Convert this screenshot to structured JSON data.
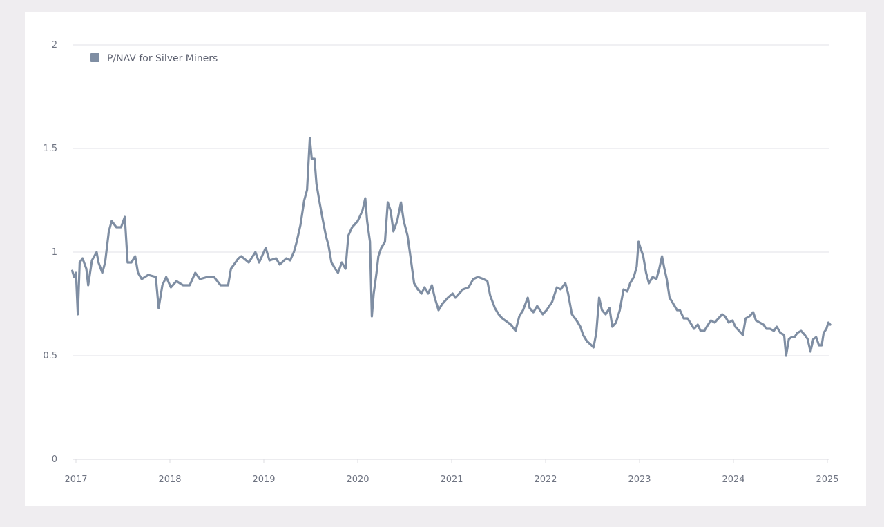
{
  "chart_data": {
    "type": "line",
    "title": "",
    "xlabel": "",
    "ylabel": "",
    "ylim": [
      0,
      2
    ],
    "xlim": [
      2016.96,
      2025.03
    ],
    "y_ticks": [
      {
        "value": 0,
        "label": "0"
      },
      {
        "value": 0.5,
        "label": "0.5"
      },
      {
        "value": 1,
        "label": "1"
      },
      {
        "value": 1.5,
        "label": "1.5"
      },
      {
        "value": 2,
        "label": "2"
      }
    ],
    "x_ticks": [
      {
        "value": 2017,
        "label": "2017"
      },
      {
        "value": 2018,
        "label": "2018"
      },
      {
        "value": 2019,
        "label": "2019"
      },
      {
        "value": 2020,
        "label": "2020"
      },
      {
        "value": 2021,
        "label": "2021"
      },
      {
        "value": 2022,
        "label": "2022"
      },
      {
        "value": 2023,
        "label": "2023"
      },
      {
        "value": 2024,
        "label": "2024"
      },
      {
        "value": 2025,
        "label": "2025"
      }
    ],
    "grid": true,
    "legend": {
      "placement": "top-left"
    },
    "series": [
      {
        "name": "P/NAV for Silver Miners",
        "color": "#7f8ea3",
        "x": [
          2016.96,
          2016.98,
          2017.0,
          2017.02,
          2017.04,
          2017.07,
          2017.11,
          2017.13,
          2017.17,
          2017.22,
          2017.24,
          2017.28,
          2017.31,
          2017.35,
          2017.38,
          2017.43,
          2017.48,
          2017.52,
          2017.55,
          2017.59,
          2017.63,
          2017.66,
          2017.7,
          2017.77,
          2017.85,
          2017.88,
          2017.92,
          2017.96,
          2018.01,
          2018.07,
          2018.14,
          2018.21,
          2018.27,
          2018.32,
          2018.4,
          2018.47,
          2018.54,
          2018.62,
          2018.65,
          2018.73,
          2018.76,
          2018.84,
          2018.91,
          2018.95,
          2019.02,
          2019.06,
          2019.13,
          2019.17,
          2019.24,
          2019.28,
          2019.32,
          2019.35,
          2019.39,
          2019.43,
          2019.46,
          2019.49,
          2019.51,
          2019.54,
          2019.56,
          2019.59,
          2019.63,
          2019.66,
          2019.69,
          2019.72,
          2019.76,
          2019.79,
          2019.83,
          2019.87,
          2019.9,
          2019.94,
          2020.0,
          2020.05,
          2020.08,
          2020.1,
          2020.13,
          2020.15,
          2020.17,
          2020.2,
          2020.22,
          2020.25,
          2020.29,
          2020.32,
          2020.35,
          2020.38,
          2020.42,
          2020.46,
          2020.49,
          2020.53,
          2020.57,
          2020.6,
          2020.64,
          2020.68,
          2020.71,
          2020.75,
          2020.79,
          2020.82,
          2020.86,
          2020.9,
          2020.96,
          2021.01,
          2021.04,
          2021.08,
          2021.12,
          2021.18,
          2021.23,
          2021.28,
          2021.34,
          2021.38,
          2021.41,
          2021.46,
          2021.5,
          2021.54,
          2021.6,
          2021.63,
          2021.68,
          2021.72,
          2021.76,
          2021.81,
          2021.83,
          2021.87,
          2021.91,
          2021.97,
          2022.01,
          2022.07,
          2022.12,
          2022.16,
          2022.21,
          2022.24,
          2022.28,
          2022.33,
          2022.37,
          2022.4,
          2022.44,
          2022.49,
          2022.51,
          2022.54,
          2022.57,
          2022.6,
          2022.64,
          2022.68,
          2022.71,
          2022.75,
          2022.79,
          2022.83,
          2022.87,
          2022.9,
          2022.94,
          2022.97,
          2022.99,
          2023.01,
          2023.04,
          2023.07,
          2023.1,
          2023.14,
          2023.18,
          2023.21,
          2023.24,
          2023.26,
          2023.29,
          2023.32,
          2023.36,
          2023.4,
          2023.43,
          2023.47,
          2023.51,
          2023.54,
          2023.58,
          2023.62,
          2023.65,
          2023.69,
          2023.73,
          2023.76,
          2023.8,
          2023.84,
          2023.88,
          2023.91,
          2023.95,
          2023.99,
          2024.02,
          2024.06,
          2024.1,
          2024.13,
          2024.17,
          2024.21,
          2024.24,
          2024.28,
          2024.32,
          2024.35,
          2024.39,
          2024.43,
          2024.46,
          2024.5,
          2024.54,
          2024.56,
          2024.59,
          2024.62,
          2024.65,
          2024.68,
          2024.72,
          2024.76,
          2024.79,
          2024.82,
          2024.85,
          2024.88,
          2024.91,
          2024.94,
          2024.96,
          2024.99,
          2025.01,
          2025.03
        ],
        "y": [
          0.91,
          0.88,
          0.9,
          0.7,
          0.95,
          0.97,
          0.92,
          0.84,
          0.96,
          1.0,
          0.95,
          0.9,
          0.95,
          1.1,
          1.15,
          1.12,
          1.12,
          1.17,
          0.95,
          0.95,
          0.98,
          0.9,
          0.87,
          0.89,
          0.88,
          0.73,
          0.84,
          0.88,
          0.83,
          0.86,
          0.84,
          0.84,
          0.9,
          0.87,
          0.88,
          0.88,
          0.84,
          0.84,
          0.92,
          0.97,
          0.98,
          0.95,
          1.0,
          0.95,
          1.02,
          0.96,
          0.97,
          0.94,
          0.97,
          0.96,
          1.0,
          1.05,
          1.13,
          1.25,
          1.3,
          1.55,
          1.45,
          1.45,
          1.33,
          1.25,
          1.15,
          1.08,
          1.03,
          0.95,
          0.92,
          0.9,
          0.95,
          0.92,
          1.08,
          1.12,
          1.15,
          1.2,
          1.26,
          1.15,
          1.05,
          0.69,
          0.8,
          0.9,
          0.98,
          1.02,
          1.05,
          1.24,
          1.2,
          1.1,
          1.15,
          1.24,
          1.15,
          1.08,
          0.95,
          0.85,
          0.82,
          0.8,
          0.83,
          0.8,
          0.84,
          0.78,
          0.72,
          0.75,
          0.78,
          0.8,
          0.78,
          0.8,
          0.82,
          0.83,
          0.87,
          0.88,
          0.87,
          0.86,
          0.79,
          0.73,
          0.7,
          0.68,
          0.66,
          0.65,
          0.62,
          0.69,
          0.72,
          0.78,
          0.73,
          0.71,
          0.74,
          0.7,
          0.72,
          0.76,
          0.83,
          0.82,
          0.85,
          0.8,
          0.7,
          0.67,
          0.64,
          0.6,
          0.57,
          0.55,
          0.54,
          0.61,
          0.78,
          0.72,
          0.7,
          0.73,
          0.64,
          0.66,
          0.72,
          0.82,
          0.81,
          0.85,
          0.88,
          0.93,
          1.05,
          1.02,
          0.98,
          0.9,
          0.85,
          0.88,
          0.87,
          0.92,
          0.98,
          0.93,
          0.87,
          0.78,
          0.75,
          0.72,
          0.72,
          0.68,
          0.68,
          0.66,
          0.63,
          0.65,
          0.62,
          0.62,
          0.65,
          0.67,
          0.66,
          0.68,
          0.7,
          0.69,
          0.66,
          0.67,
          0.64,
          0.62,
          0.6,
          0.68,
          0.69,
          0.71,
          0.67,
          0.66,
          0.65,
          0.63,
          0.63,
          0.62,
          0.64,
          0.61,
          0.6,
          0.5,
          0.58,
          0.59,
          0.59,
          0.61,
          0.62,
          0.6,
          0.58,
          0.52,
          0.58,
          0.59,
          0.55,
          0.55,
          0.61,
          0.63,
          0.66,
          0.65
        ]
      }
    ]
  }
}
